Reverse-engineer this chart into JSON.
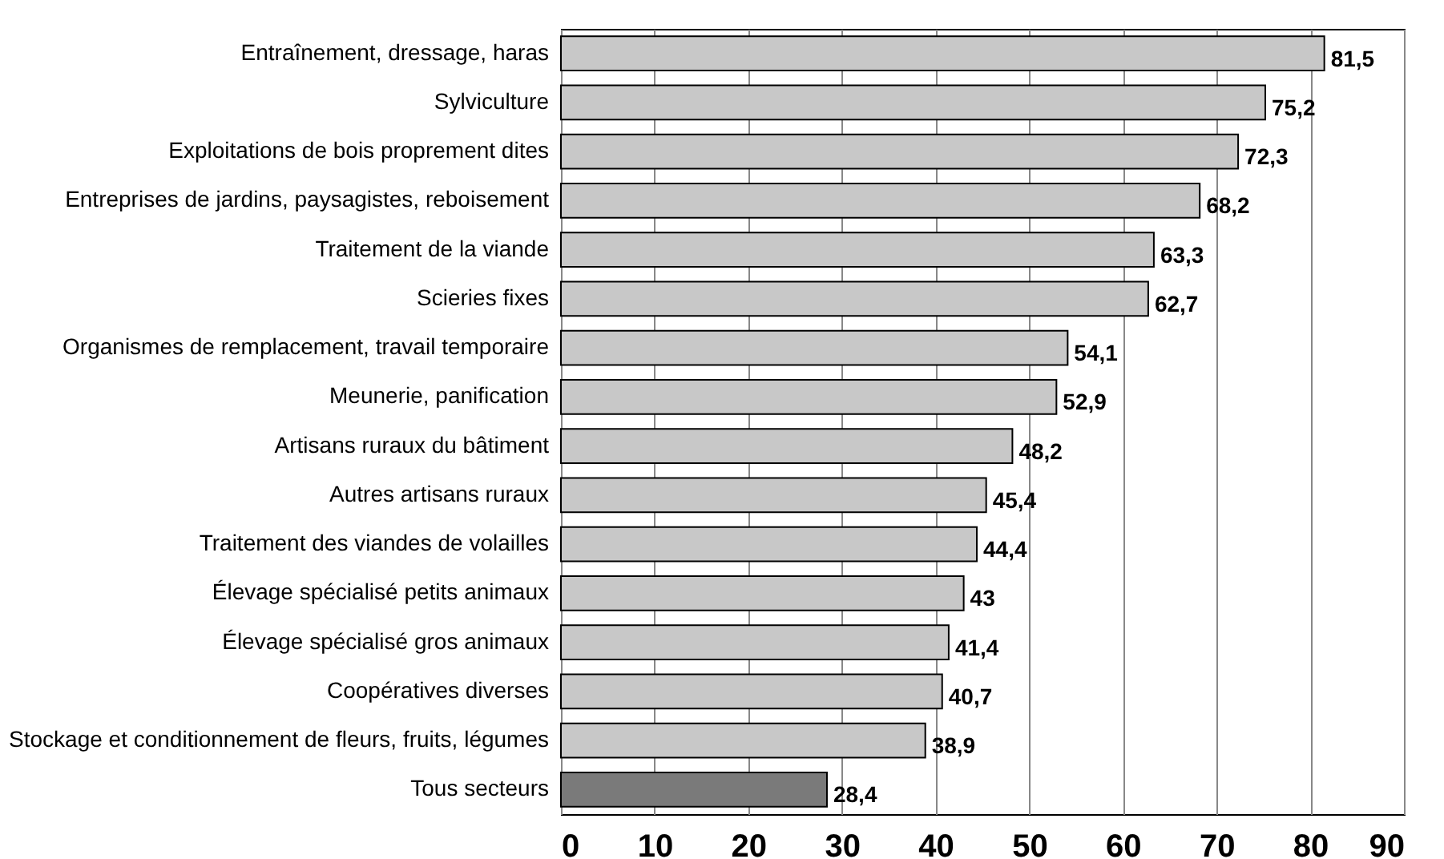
{
  "chart_data": {
    "type": "bar",
    "orientation": "horizontal",
    "categories": [
      "Entraînement, dressage, haras",
      "Sylviculture",
      "Exploitations de bois proprement dites",
      "Entreprises de jardins, paysagistes, reboisement",
      "Traitement de la viande",
      "Scieries fixes",
      "Organismes de remplacement, travail temporaire",
      "Meunerie, panification",
      "Artisans ruraux du bâtiment",
      "Autres artisans ruraux",
      "Traitement des viandes de volailles",
      "Élevage spécialisé petits animaux",
      "Élevage spécialisé gros animaux",
      "Coopératives diverses",
      "Stockage et conditionnement de fleurs, fruits, légumes",
      "Tous secteurs"
    ],
    "values": [
      81.5,
      75.2,
      72.3,
      68.2,
      63.3,
      62.7,
      54.1,
      52.9,
      48.2,
      45.4,
      44.4,
      43,
      41.4,
      40.7,
      38.9,
      28.4
    ],
    "value_labels": [
      "81,5",
      "75,2",
      "72,3",
      "68,2",
      "63,3",
      "62,7",
      "54,1",
      "52,9",
      "48,2",
      "45,4",
      "44,4",
      "43",
      "41,4",
      "40,7",
      "38,9",
      "28,4"
    ],
    "colors": [
      "#c8c8c8",
      "#c8c8c8",
      "#c8c8c8",
      "#c8c8c8",
      "#c8c8c8",
      "#c8c8c8",
      "#c8c8c8",
      "#c8c8c8",
      "#c8c8c8",
      "#c8c8c8",
      "#c8c8c8",
      "#c8c8c8",
      "#c8c8c8",
      "#c8c8c8",
      "#c8c8c8",
      "#7a7a7a"
    ],
    "xlim": [
      0,
      90
    ],
    "xticks": [
      0,
      10,
      20,
      30,
      40,
      50,
      60,
      70,
      80,
      90
    ],
    "grid": "x"
  }
}
